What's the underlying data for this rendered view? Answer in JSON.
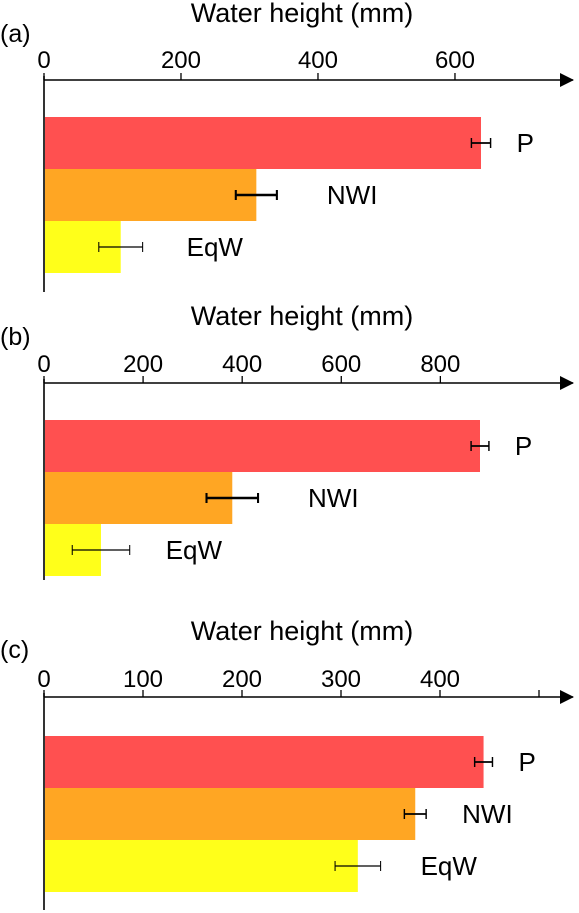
{
  "chart_data": [
    {
      "type": "bar",
      "orientation": "horizontal",
      "panel_label": "(a)",
      "xlabel": "Water height (mm)",
      "ticks": [
        0,
        200,
        400,
        600
      ],
      "tick_labels": [
        "0",
        "200",
        "400",
        "600"
      ],
      "xlim": [
        0,
        700
      ],
      "axis_position": "top",
      "grid": false,
      "legend": "none",
      "categories": [
        "P",
        "NWI",
        "EqW"
      ],
      "values": [
        638,
        310,
        112
      ],
      "errors": [
        14,
        30,
        32
      ],
      "colors": [
        "#ff5050",
        "#ffa623",
        "#ffff1a"
      ]
    },
    {
      "type": "bar",
      "orientation": "horizontal",
      "panel_label": "(b)",
      "xlabel": "Water height (mm)",
      "ticks": [
        0,
        200,
        400,
        600,
        800
      ],
      "tick_labels": [
        "0",
        "200",
        "400",
        "600",
        "800"
      ],
      "xlim": [
        0,
        1000
      ],
      "axis_position": "top",
      "grid": false,
      "legend": "none",
      "categories": [
        "P",
        "NWI",
        "EqW"
      ],
      "values": [
        880,
        380,
        115
      ],
      "errors": [
        18,
        52,
        58
      ],
      "colors": [
        "#ff5050",
        "#ffa623",
        "#ffff1a"
      ]
    },
    {
      "type": "bar",
      "orientation": "horizontal",
      "panel_label": "(c)",
      "xlabel": "Water height (mm)",
      "ticks": [
        0,
        100,
        200,
        300,
        400,
        500
      ],
      "tick_labels": [
        "0",
        "100",
        "200",
        "300",
        "400",
        ""
      ],
      "xlim": [
        0,
        540
      ],
      "axis_position": "top",
      "grid": false,
      "legend": "none",
      "categories": [
        "P",
        "NWI",
        "EqW"
      ],
      "values": [
        444,
        375,
        317
      ],
      "errors": [
        9,
        11,
        23
      ],
      "colors": [
        "#ff5050",
        "#ffa623",
        "#ffff1a"
      ]
    }
  ]
}
